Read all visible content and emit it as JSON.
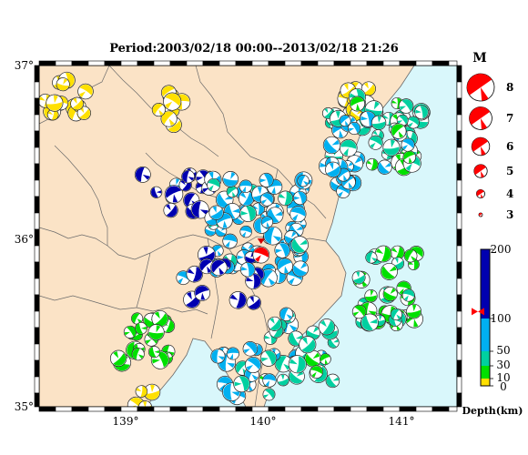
{
  "title": "Period:2003/02/18 00:00--2013/02/18 21:26",
  "map": {
    "lat_labels": [
      "37°",
      "36°",
      "35°"
    ],
    "lat_values": [
      37,
      36,
      35
    ],
    "lon_labels": [
      "139°",
      "140°",
      "141°"
    ],
    "lon_values": [
      139,
      140,
      141
    ],
    "lon_range": [
      138.35,
      141.4
    ],
    "lat_range": [
      35.0,
      37.0
    ],
    "colors": {
      "sea": "#d9f7fb",
      "land": "#fbe3c6",
      "boundary": "#6a6a6a",
      "frame_black": "#000000",
      "frame_white": "#ffffff"
    },
    "main_event": {
      "lon": 139.97,
      "lat": 35.89,
      "depth_km": 110,
      "magnitude": 4.6,
      "color": "#ff0000"
    }
  },
  "magnitude_legend": {
    "heading": "M",
    "items": [
      {
        "label": "8",
        "magnitude": 8
      },
      {
        "label": "7",
        "magnitude": 7
      },
      {
        "label": "6",
        "magnitude": 6
      },
      {
        "label": "5",
        "magnitude": 5
      },
      {
        "label": "4",
        "magnitude": 4
      },
      {
        "label": "3",
        "magnitude": 3
      }
    ],
    "color": "#ff0000"
  },
  "depth_colorbar": {
    "title": "Depth(km)",
    "tick_labels": [
      "200",
      "100",
      "50",
      "30",
      "10",
      "0"
    ],
    "ticks_km": [
      200,
      100,
      50,
      30,
      10,
      0
    ],
    "bands": [
      {
        "from": 0,
        "to": 10,
        "color": "#ffe000"
      },
      {
        "from": 10,
        "to": 30,
        "color": "#00e000"
      },
      {
        "from": 30,
        "to": 50,
        "color": "#00d0a0"
      },
      {
        "from": 50,
        "to": 100,
        "color": "#00b0f0"
      },
      {
        "from": 100,
        "to": 200,
        "color": "#0000b0"
      }
    ],
    "marker_depth_km": 110,
    "marker_color": "#ff0000"
  },
  "chart_data": {
    "type": "scatter",
    "title": "Period:2003/02/18 00:00--2013/02/18 21:26",
    "xlabel": "",
    "ylabel": "",
    "xlim": [
      138.35,
      141.4
    ],
    "ylim": [
      35.0,
      37.0
    ],
    "size_legend": "M",
    "color_legend": "Depth(km)",
    "clusters": [
      {
        "region": "northwest",
        "lon": 138.55,
        "lat": 36.8,
        "depth_km": 5,
        "count": 14,
        "spread": [
          0.2,
          0.12
        ]
      },
      {
        "region": "north-central",
        "lon": 139.3,
        "lat": 36.75,
        "depth_km": 5,
        "count": 8,
        "spread": [
          0.15,
          0.1
        ]
      },
      {
        "region": "north-east inland",
        "lon": 140.65,
        "lat": 36.75,
        "depth_km": 5,
        "count": 22,
        "spread": [
          0.12,
          0.12
        ]
      },
      {
        "region": "offshore ibaraki",
        "lon": 140.9,
        "lat": 36.6,
        "depth_km": 40,
        "count": 42,
        "spread": [
          0.25,
          0.22
        ]
      },
      {
        "region": "ibaraki coast",
        "lon": 140.55,
        "lat": 36.5,
        "depth_km": 60,
        "count": 28,
        "spread": [
          0.1,
          0.25
        ]
      },
      {
        "region": "tochigi deep",
        "lon": 139.35,
        "lat": 36.25,
        "depth_km": 150,
        "count": 16,
        "spread": [
          0.25,
          0.12
        ]
      },
      {
        "region": "central kanto",
        "lon": 139.95,
        "lat": 36.05,
        "depth_km": 70,
        "count": 75,
        "spread": [
          0.35,
          0.3
        ]
      },
      {
        "region": "central kanto deep",
        "lon": 139.7,
        "lat": 35.75,
        "depth_km": 130,
        "count": 14,
        "spread": [
          0.3,
          0.15
        ]
      },
      {
        "region": "east offshore",
        "lon": 140.9,
        "lat": 35.7,
        "depth_km": 25,
        "count": 38,
        "spread": [
          0.22,
          0.22
        ]
      },
      {
        "region": "kanagawa",
        "lon": 139.1,
        "lat": 35.4,
        "depth_km": 20,
        "count": 22,
        "spread": [
          0.2,
          0.15
        ]
      },
      {
        "region": "chiba",
        "lon": 140.25,
        "lat": 35.35,
        "depth_km": 40,
        "count": 30,
        "spread": [
          0.25,
          0.2
        ]
      },
      {
        "region": "tokyo bay south",
        "lon": 139.85,
        "lat": 35.2,
        "depth_km": 60,
        "count": 18,
        "spread": [
          0.2,
          0.15
        ]
      },
      {
        "region": "izu",
        "lon": 139.1,
        "lat": 35.05,
        "depth_km": 5,
        "count": 4,
        "spread": [
          0.08,
          0.06
        ]
      }
    ]
  }
}
